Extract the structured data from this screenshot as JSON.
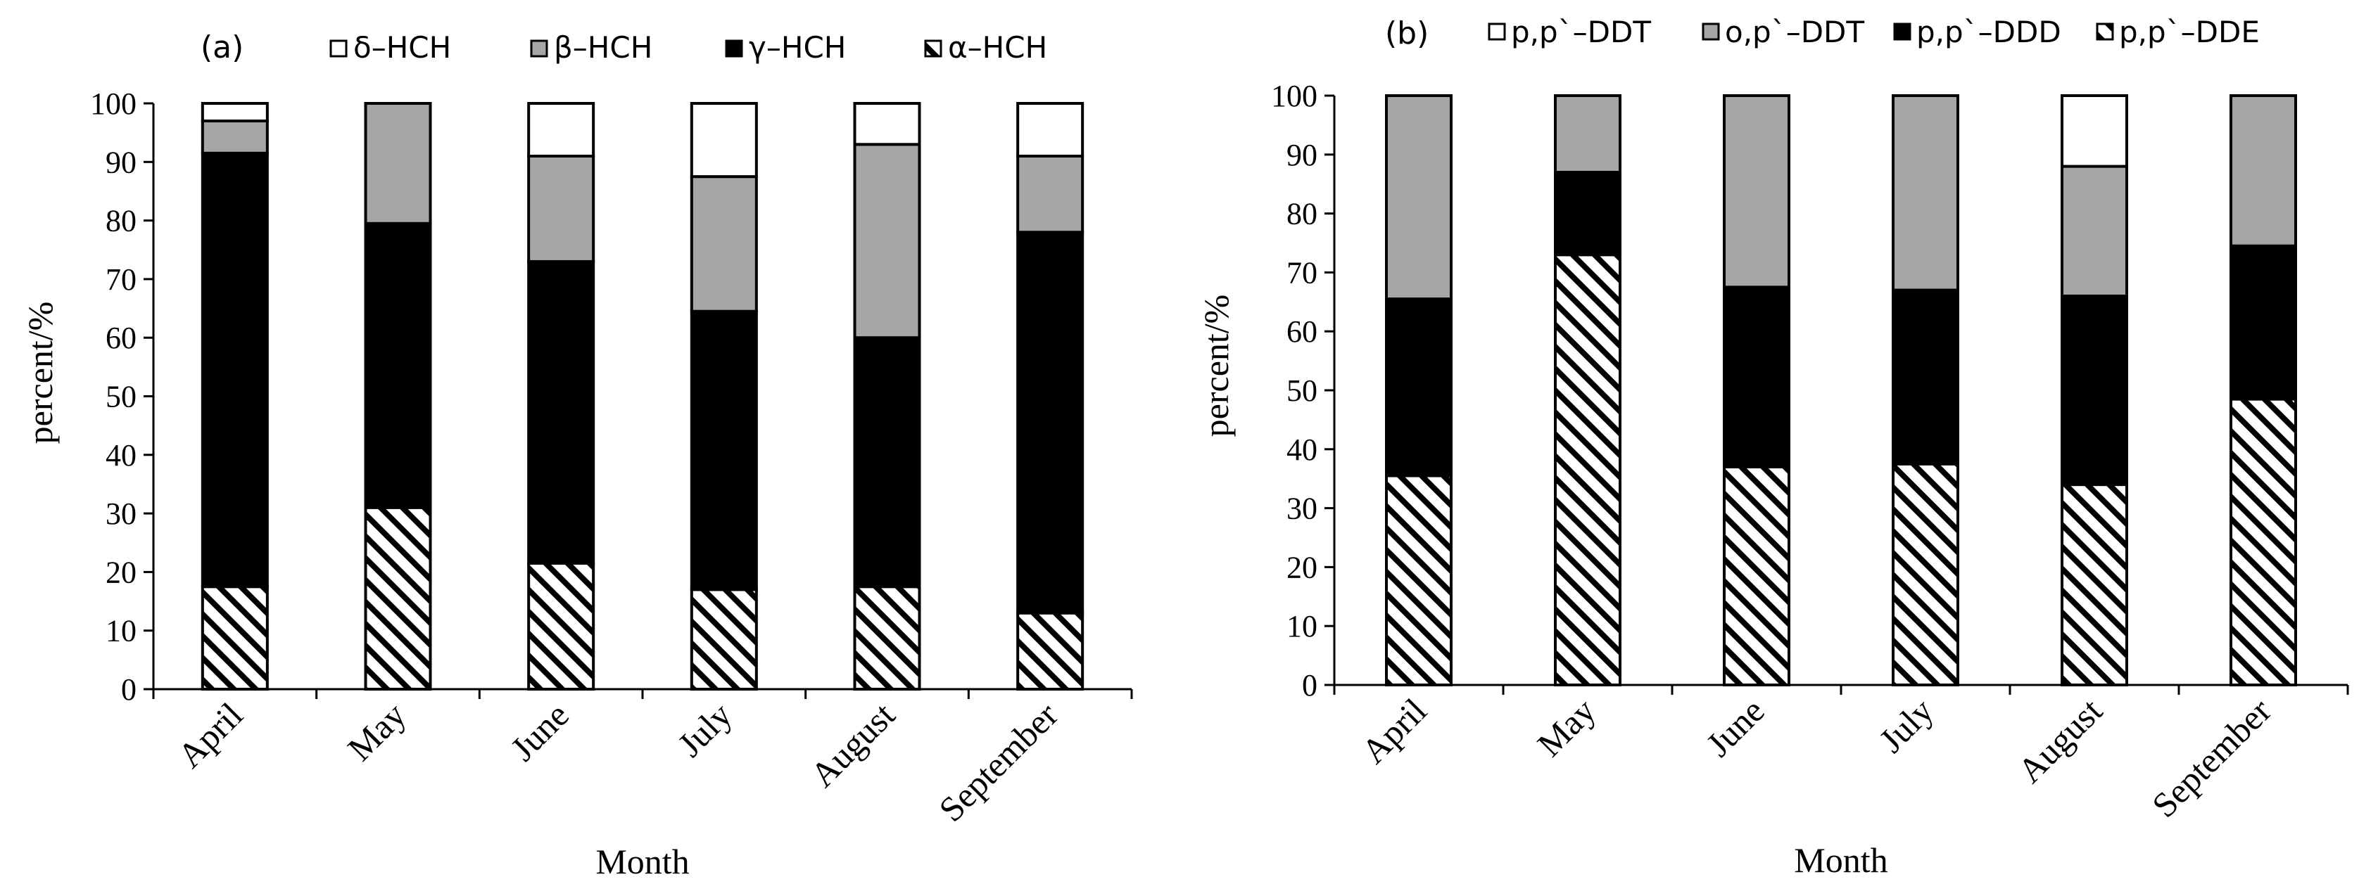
{
  "colors": {
    "black": "#000000",
    "gray": "#a6a6a6",
    "white": "#ffffff",
    "hatch": "hatch"
  },
  "chart_data": [
    {
      "type": "stacked-bar",
      "panel_label": "(a)",
      "categories": [
        "April",
        "May",
        "June",
        "July",
        "August",
        "September"
      ],
      "xlabel": "Month",
      "ylabel": "percent/%",
      "ylim": [
        0,
        100
      ],
      "yticks": [
        "0",
        "10",
        "20",
        "30",
        "40",
        "50",
        "60",
        "70",
        "80",
        "90",
        "100"
      ],
      "legend_order": [
        "δ–HCH",
        "β–HCH",
        "γ–HCH",
        "α–HCH"
      ],
      "series": [
        {
          "name": "α–HCH",
          "fill": "hatch",
          "values": [
            17.5,
            31,
            21.5,
            17,
            17.5,
            13
          ]
        },
        {
          "name": "γ–HCH",
          "fill": "black",
          "values": [
            74,
            48.5,
            51.5,
            47.5,
            42.5,
            65
          ]
        },
        {
          "name": "β–HCH",
          "fill": "gray",
          "values": [
            5.5,
            20.5,
            18,
            23,
            33,
            13
          ]
        },
        {
          "name": "δ–HCH",
          "fill": "white",
          "values": [
            3,
            0,
            9,
            12.5,
            7,
            9
          ]
        }
      ]
    },
    {
      "type": "stacked-bar",
      "panel_label": "(b)",
      "categories": [
        "April",
        "May",
        "June",
        "July",
        "August",
        "September"
      ],
      "xlabel": "Month",
      "ylabel": "percent/%",
      "ylim": [
        0,
        100
      ],
      "yticks": [
        "0",
        "10",
        "20",
        "30",
        "40",
        "50",
        "60",
        "70",
        "80",
        "90",
        "100"
      ],
      "legend_order": [
        "p,p`–DDT",
        "o,p`–DDT",
        "p,p`–DDD",
        "p,p`–DDE"
      ],
      "series": [
        {
          "name": "p,p`–DDE",
          "fill": "hatch",
          "values": [
            35.5,
            73,
            37,
            37.5,
            34,
            48.5
          ]
        },
        {
          "name": "p,p`–DDD",
          "fill": "black",
          "values": [
            30,
            14,
            30.5,
            29.5,
            32,
            26
          ]
        },
        {
          "name": "o,p`–DDT",
          "fill": "gray",
          "values": [
            34.5,
            13,
            32.5,
            33,
            22,
            25.5
          ]
        },
        {
          "name": "p,p`–DDT",
          "fill": "white",
          "values": [
            0,
            0,
            0,
            0,
            12,
            0
          ]
        }
      ]
    }
  ]
}
